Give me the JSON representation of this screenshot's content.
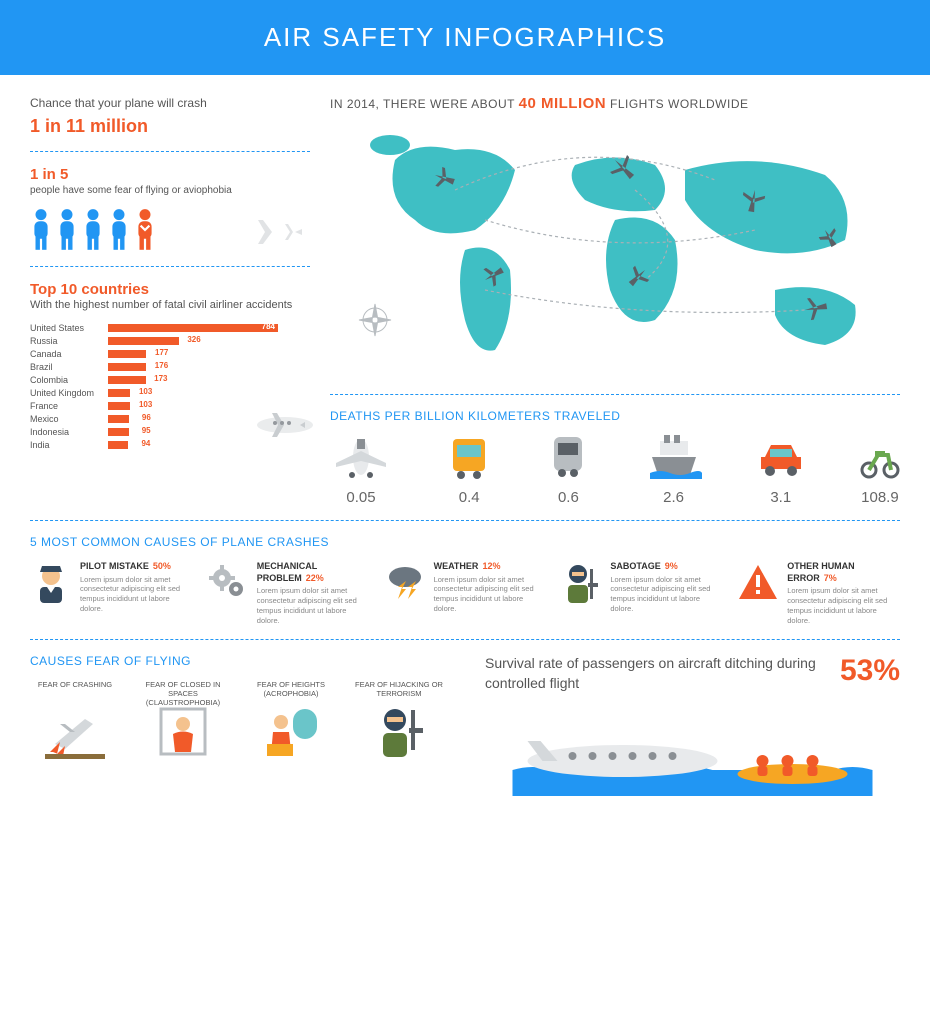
{
  "header": {
    "title": "AIR SAFETY INFOGRAPHICS"
  },
  "colors": {
    "primary_blue": "#2196f3",
    "orange": "#f15a29",
    "map_teal": "#3fbfc4",
    "gray": "#8a8f94",
    "text": "#555555"
  },
  "crash_chance": {
    "label": "Chance that your plane will crash",
    "value": "1 in 11 million"
  },
  "aviophobia": {
    "value": "1 in 5",
    "label": "people have some fear of flying or aviophobia",
    "people_count": 5,
    "highlighted_index": 4,
    "normal_color": "#2196f3",
    "highlight_color": "#f15a29"
  },
  "top_countries": {
    "title": "Top 10 countries",
    "subtitle": "With the highest number of fatal civil airliner accidents",
    "max_value": 784,
    "bar_color": "#f15a29",
    "items": [
      {
        "label": "United States",
        "value": 784
      },
      {
        "label": "Russia",
        "value": 326
      },
      {
        "label": "Canada",
        "value": 177
      },
      {
        "label": "Brazil",
        "value": 176
      },
      {
        "label": "Colombia",
        "value": 173
      },
      {
        "label": "United Kingdom",
        "value": 103
      },
      {
        "label": "France",
        "value": 103
      },
      {
        "label": "Mexico",
        "value": 96
      },
      {
        "label": "Indonesia",
        "value": 95
      },
      {
        "label": "India",
        "value": 94
      }
    ]
  },
  "flights_worldwide": {
    "prefix": "IN 2014, THERE WERE ABOUT",
    "highlight": "40 MILLION",
    "suffix": "FLIGHTS WORLDWIDE"
  },
  "deaths_per_km": {
    "title": "DEATHS PER BILLION KILOMETERS TRAVELED",
    "items": [
      {
        "name": "plane",
        "value": "0.05"
      },
      {
        "name": "bus",
        "value": "0.4"
      },
      {
        "name": "train",
        "value": "0.6"
      },
      {
        "name": "ship",
        "value": "2.6"
      },
      {
        "name": "car",
        "value": "3.1"
      },
      {
        "name": "motorbike",
        "value": "108.9"
      }
    ]
  },
  "crash_causes": {
    "title": "5 MOST COMMON CAUSES OF PLANE CRASHES",
    "lorem": "Lorem ipsum dolor sit amet consectetur adipiscing elit sed tempus incididunt ut labore dolore.",
    "items": [
      {
        "name": "PILOT MISTAKE",
        "pct": "50%",
        "icon": "pilot"
      },
      {
        "name": "MECHANICAL PROBLEM",
        "pct": "22%",
        "icon": "gears"
      },
      {
        "name": "WEATHER",
        "pct": "12%",
        "icon": "storm"
      },
      {
        "name": "SABOTAGE",
        "pct": "9%",
        "icon": "terrorist"
      },
      {
        "name": "OTHER HUMAN ERROR",
        "pct": "7%",
        "icon": "warning"
      }
    ]
  },
  "fears": {
    "title": "CAUSES FEAR OF FLYING",
    "items": [
      {
        "label": "FEAR OF CRASHING",
        "icon": "crash"
      },
      {
        "label": "FEAR OF CLOSED IN SPACES (CLAUSTROPHOBIA)",
        "icon": "claustro"
      },
      {
        "label": "FEAR OF HEIGHTS (ACROPHOBIA)",
        "icon": "heights"
      },
      {
        "label": "FEAR OF HIJACKING OR TERRORISM",
        "icon": "hijack"
      }
    ]
  },
  "survival": {
    "text": "Survival rate of passengers on aircraft ditching during controlled flight",
    "pct": "53%"
  }
}
